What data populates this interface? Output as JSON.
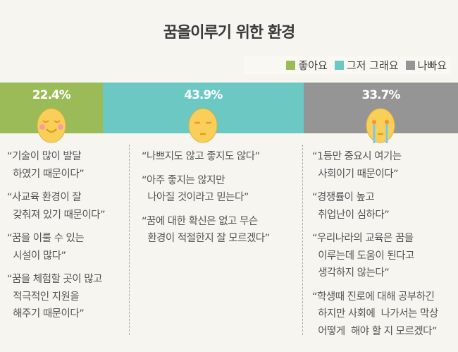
{
  "chart_data": {
    "type": "bar",
    "orientation": "horizontal-stacked",
    "title": "꿈을이루기 위한 환경",
    "categories": [
      "좋아요",
      "그저 그래요",
      "나빠요"
    ],
    "values": [
      22.4,
      43.9,
      33.7
    ],
    "labels": [
      "22.4%",
      "43.9%",
      "33.7%"
    ],
    "colors": [
      "#9bbb59",
      "#6bc8c3",
      "#959595"
    ],
    "legend_position": "top-right",
    "faces": [
      "smiling-face-icon",
      "neutral-face-icon",
      "crying-face-icon"
    ]
  },
  "columns": [
    {
      "quotes": [
        "“기술이 많이 발달\n  하였기 때문이다”",
        "“사교육 환경이 잘\n  갖춰져 있기 때문이다”",
        "“꿈을 이룰 수 있는\n  시설이 많다”",
        "“꿈을 체험할 곳이 많고\n  적극적인 지원을\n  해주기 때문이다”"
      ]
    },
    {
      "quotes": [
        "“나쁘지도 않고 좋지도 않다”",
        "“아주 좋지는 않지만\n  나아질 것이라고 믿는다”",
        "“꿈에 대한 확신은 없고 무슨\n  환경이 적절한지 잘 모르겠다”"
      ]
    },
    {
      "quotes": [
        "“1등만 중요시 여기는\n  사회이기 때문이다”",
        "“경쟁률이 높고\n  취업난이 심하다”",
        "“우리나라의 교육은 꿈을\n  이루는데 도움이 된다고\n  생각하지 않는다”",
        "“학생때 진로에 대해 공부하긴\n  하지만 사회에  나가서는 막상\n  어떻게  해야 할 지 모르겠다”"
      ]
    }
  ]
}
